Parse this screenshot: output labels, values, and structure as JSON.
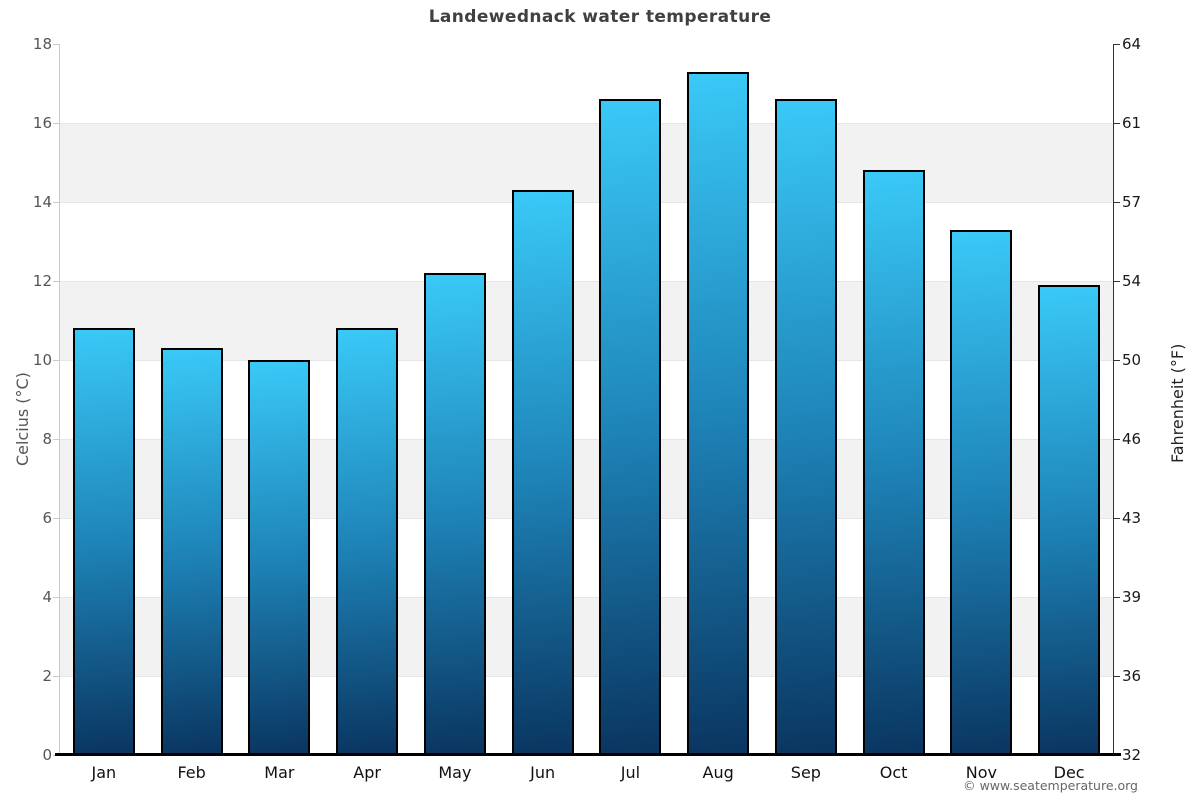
{
  "title": "Landewednack water temperature",
  "footer": "© www.seatemperature.org",
  "chart_data": {
    "type": "bar",
    "title": "Landewednack water temperature",
    "categories": [
      "Jan",
      "Feb",
      "Mar",
      "Apr",
      "May",
      "Jun",
      "Jul",
      "Aug",
      "Sep",
      "Oct",
      "Nov",
      "Dec"
    ],
    "values": [
      10.8,
      10.3,
      10.0,
      10.8,
      12.2,
      14.3,
      16.6,
      17.3,
      16.6,
      14.8,
      13.3,
      11.9
    ],
    "series_name": "Water temperature",
    "xlabel": "",
    "ylabel_left": "Celcius (°C)",
    "ylabel_right": "Fahrenheit (°F)",
    "ylim_left": [
      0,
      18
    ],
    "yticks": [
      {
        "c": "0",
        "f": "32"
      },
      {
        "c": "2",
        "f": "36"
      },
      {
        "c": "4",
        "f": "39"
      },
      {
        "c": "6",
        "f": "43"
      },
      {
        "c": "8",
        "f": "46"
      },
      {
        "c": "10",
        "f": "50"
      },
      {
        "c": "12",
        "f": "54"
      },
      {
        "c": "14",
        "f": "57"
      },
      {
        "c": "16",
        "f": "61"
      },
      {
        "c": "18",
        "f": "64"
      }
    ],
    "grid": "alternating horizontal bands every 2 °C, gray on 2-4, 6-8, 10-12, 14-16",
    "legend": "none",
    "colors": {
      "bar_top": "#3ac9f7",
      "bar_mid": "#1e84b8",
      "bar_bottom": "#0a3560",
      "bar_border": "#000000",
      "band_gray": "#f2f2f2",
      "gridline": "#e6e6e6",
      "left_axis_line": "#c9c9c9",
      "right_axis_line": "#333333",
      "bottom_axis_line": "#000000",
      "title_color": "#404040",
      "left_tick_color": "#555555",
      "right_tick_color": "#1a1a1a",
      "month_color": "#111111",
      "footer_color": "#666666"
    }
  }
}
